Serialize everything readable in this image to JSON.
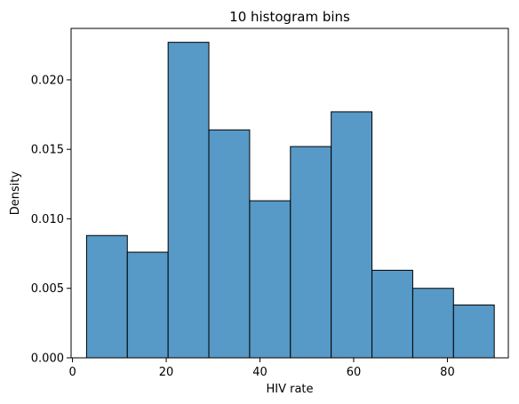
{
  "chart_data": {
    "type": "bar",
    "title": "10 histogram bins",
    "xlabel": "HIV rate",
    "ylabel": "Density",
    "xlim": [
      -0.3,
      93.0
    ],
    "ylim": [
      0,
      0.0237
    ],
    "bin_edges": [
      3.0,
      11.7,
      20.4,
      29.1,
      37.8,
      46.5,
      55.2,
      63.9,
      72.6,
      81.3,
      90.0
    ],
    "values": [
      0.0088,
      0.0076,
      0.0227,
      0.0164,
      0.0113,
      0.0152,
      0.0177,
      0.0063,
      0.005,
      0.0038
    ],
    "x_ticks": [
      0,
      20,
      40,
      60,
      80
    ],
    "x_tick_labels": [
      "0",
      "20",
      "40",
      "60",
      "80"
    ],
    "y_ticks": [
      0,
      0.005,
      0.01,
      0.015,
      0.02
    ],
    "y_tick_labels": [
      "0.000",
      "0.005",
      "0.010",
      "0.015",
      "0.020"
    ],
    "grid": false,
    "colors": {
      "bar_fill": "#5799c7",
      "bar_edge": "#000000"
    }
  }
}
